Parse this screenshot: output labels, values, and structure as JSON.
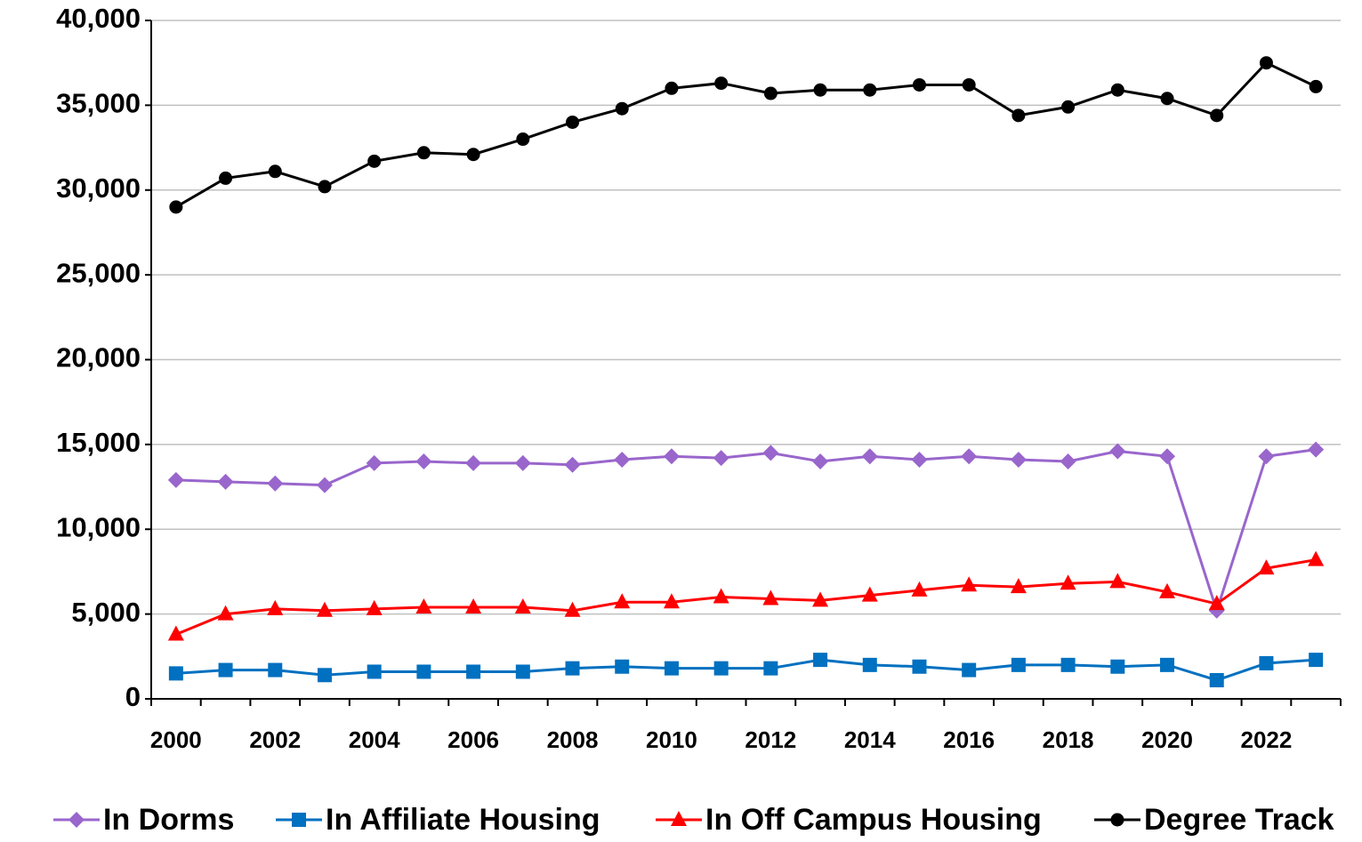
{
  "chart_data": {
    "type": "line",
    "categories": [
      "2000",
      null,
      "2002",
      null,
      "2004",
      null,
      "2006",
      null,
      "2008",
      null,
      "2010",
      null,
      "2012",
      null,
      "2014",
      null,
      "2016",
      null,
      "2018",
      null,
      "2020",
      null,
      "2022",
      null
    ],
    "series": [
      {
        "name": "In Dorms",
        "color": "#9966cc",
        "marker": "diamond",
        "values": [
          12900,
          12800,
          12700,
          12600,
          13900,
          14000,
          13900,
          13900,
          13800,
          14100,
          14300,
          14200,
          14500,
          14000,
          14300,
          14100,
          14300,
          14100,
          14000,
          14600,
          14300,
          5200,
          14300,
          14700
        ]
      },
      {
        "name": "In Affiliate Housing",
        "color": "#0070c0",
        "marker": "square",
        "values": [
          1500,
          1700,
          1700,
          1400,
          1600,
          1600,
          1600,
          1600,
          1800,
          1900,
          1800,
          1800,
          1800,
          2300,
          2000,
          1900,
          1700,
          2000,
          2000,
          1900,
          2000,
          1100,
          2100,
          2300
        ]
      },
      {
        "name": "In Off Campus Housing",
        "color": "#ff0000",
        "marker": "triangle",
        "values": [
          3800,
          5000,
          5300,
          5200,
          5300,
          5400,
          5400,
          5400,
          5200,
          5700,
          5700,
          6000,
          5900,
          5800,
          6100,
          6400,
          6700,
          6600,
          6800,
          6900,
          6300,
          5600,
          7700,
          8200
        ]
      },
      {
        "name": "Degree Track",
        "color": "#000000",
        "marker": "circle",
        "values": [
          29000,
          30700,
          31100,
          30200,
          31700,
          32200,
          32100,
          33000,
          34000,
          34800,
          36000,
          36300,
          35700,
          35900,
          35900,
          36200,
          36200,
          34400,
          34900,
          35900,
          35400,
          34400,
          37500,
          36100
        ]
      }
    ],
    "ylim": [
      0,
      40000
    ],
    "yticks": [
      0,
      {
        "value": 5000,
        "label": "5,000"
      },
      {
        "value": 10000,
        "label": "10,000"
      },
      {
        "value": 15000,
        "label": "15,000"
      },
      {
        "value": 20000,
        "label": "20,000"
      },
      {
        "value": 25000,
        "label": "25,000"
      },
      {
        "value": 30000,
        "label": "30,000"
      },
      {
        "value": 35000,
        "label": "35,000"
      },
      {
        "value": 40000,
        "label": "40,000"
      }
    ],
    "grid": true,
    "legend": "bottom"
  }
}
